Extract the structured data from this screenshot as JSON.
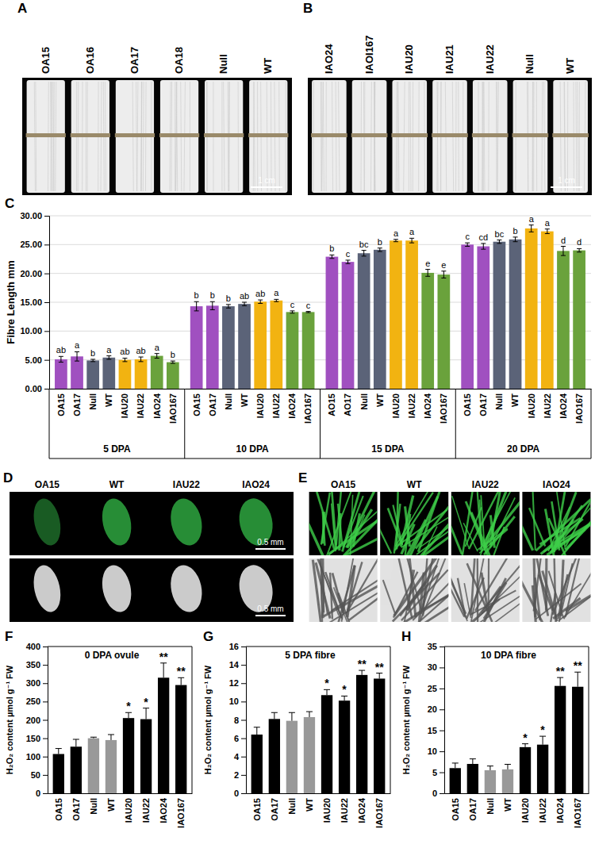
{
  "photo_panels": [
    {
      "label": "A",
      "samples": [
        "OA15",
        "OA16",
        "OA17",
        "OA18",
        "Null",
        "WT"
      ],
      "scale_bar": "1 cm"
    },
    {
      "label": "B",
      "samples": [
        "IAO24",
        "IAOI167",
        "IAU20",
        "IAU21",
        "IAU22",
        "Null",
        "WT"
      ],
      "scale_bar": "1 cm"
    },
    {
      "label": "D",
      "samples": [
        "OA15",
        "WT",
        "IAU22",
        "IAO24"
      ],
      "scale_bars": [
        "0.5 mm",
        "0.5 mm"
      ]
    },
    {
      "label": "E",
      "samples": [
        "OA15",
        "WT",
        "IAU22",
        "IAO24"
      ]
    }
  ],
  "chart_data": [
    {
      "panel_label": "C",
      "type": "bar",
      "ylabel": "Fibre Length mm",
      "grid": true,
      "ylim": [
        0,
        30
      ],
      "yticks": [
        {
          "value": 0,
          "label": "0.00"
        },
        {
          "value": 5,
          "label": "5.00"
        },
        {
          "value": 10,
          "label": "10.00"
        },
        {
          "value": 15,
          "label": "15.00"
        },
        {
          "value": 20,
          "label": "20.00"
        },
        {
          "value": 25,
          "label": "25.00"
        },
        {
          "value": 30,
          "label": "30.00"
        }
      ],
      "groups": [
        {
          "name": "5 DPA",
          "categories": [
            "OA15",
            "OA17",
            "Null",
            "WT",
            "IAU20",
            "IAU22",
            "IAO24",
            "IAO167"
          ],
          "values": [
            5.1,
            5.6,
            4.9,
            5.4,
            5.0,
            5.1,
            5.7,
            4.6
          ],
          "errors": [
            0.5,
            0.8,
            0.2,
            0.3,
            0.3,
            0.4,
            0.4,
            0.2
          ],
          "letters": [
            "ab",
            "a",
            "b",
            "a",
            "ab",
            "ab",
            "a",
            "b"
          ],
          "colors": [
            "#a050c0",
            "#a050c0",
            "#5b6378",
            "#5b6378",
            "#f2b311",
            "#f2b311",
            "#6aa23c",
            "#6aa23c"
          ]
        },
        {
          "name": "10 DPA",
          "categories": [
            "OA15",
            "OA17",
            "Null",
            "WT",
            "IAU20",
            "IAU22",
            "IAO24",
            "IAO167"
          ],
          "values": [
            14.3,
            14.4,
            14.3,
            14.7,
            15.1,
            15.3,
            13.3,
            13.3
          ],
          "errors": [
            0.8,
            0.7,
            0.3,
            0.3,
            0.3,
            0.2,
            0.2,
            0.1
          ],
          "letters": [
            "b",
            "b",
            "b",
            "ab",
            "ab",
            "a",
            "c",
            "c"
          ],
          "colors": [
            "#a050c0",
            "#a050c0",
            "#5b6378",
            "#5b6378",
            "#f2b311",
            "#f2b311",
            "#6aa23c",
            "#6aa23c"
          ]
        },
        {
          "name": "15 DPA",
          "categories": [
            "AO15",
            "AO17",
            "Null",
            "WT",
            "IAU20",
            "IAU22",
            "IAO24",
            "IAO167"
          ],
          "values": [
            22.9,
            22.0,
            23.5,
            24.1,
            25.7,
            25.7,
            20.1,
            19.8
          ],
          "errors": [
            0.3,
            0.3,
            0.5,
            0.3,
            0.2,
            0.4,
            0.6,
            0.6
          ],
          "letters": [
            "b",
            "c",
            "bc",
            "b",
            "a",
            "a",
            "e",
            "e"
          ],
          "colors": [
            "#a050c0",
            "#a050c0",
            "#5b6378",
            "#5b6378",
            "#f2b311",
            "#f2b311",
            "#6aa23c",
            "#6aa23c"
          ]
        },
        {
          "name": "20 DPA",
          "categories": [
            "OA15",
            "OA17",
            "Null",
            "WT",
            "IAU20",
            "IAU22",
            "IAO24",
            "IAO167"
          ],
          "values": [
            25.0,
            24.7,
            25.5,
            25.9,
            27.8,
            27.3,
            23.9,
            24.0
          ],
          "errors": [
            0.3,
            0.5,
            0.3,
            0.4,
            0.6,
            0.4,
            0.8,
            0.3
          ],
          "letters": [
            "c",
            "cd",
            "bc",
            "b",
            "a",
            "a",
            "d",
            "d"
          ],
          "colors": [
            "#a050c0",
            "#a050c0",
            "#5b6378",
            "#5b6378",
            "#f2b311",
            "#f2b311",
            "#6aa23c",
            "#6aa23c"
          ]
        }
      ]
    },
    {
      "panel_label": "F",
      "type": "bar",
      "title": "0 DPA ovule",
      "ylabel": "H₂O₂ content µmol g⁻¹ FW",
      "grid": false,
      "categories": [
        "OA15",
        "OA17",
        "Null",
        "WT",
        "IAU20",
        "IAU22",
        "IAO24",
        "IAO167"
      ],
      "values": [
        107,
        127,
        150,
        145,
        205,
        202,
        315,
        295
      ],
      "errors": [
        15,
        20,
        3,
        15,
        15,
        30,
        40,
        20
      ],
      "significance": [
        null,
        null,
        null,
        null,
        "*",
        "*",
        "**",
        "**"
      ],
      "colors": [
        "#000000",
        "#000000",
        "#999999",
        "#999999",
        "#000000",
        "#000000",
        "#000000",
        "#000000"
      ],
      "ylim": [
        0,
        400
      ],
      "yticks": [
        0,
        50,
        100,
        150,
        200,
        250,
        300,
        350,
        400
      ]
    },
    {
      "panel_label": "G",
      "type": "bar",
      "title": "5 DPA fibre",
      "ylabel": "H₂O₂ content µmol g⁻¹ FW",
      "grid": false,
      "categories": [
        "OA15",
        "OA17",
        "Null",
        "WT",
        "IAU20",
        "IAU22",
        "IAO24",
        "IAO167"
      ],
      "values": [
        6.4,
        8.1,
        7.9,
        8.3,
        10.7,
        10.1,
        12.9,
        12.5
      ],
      "errors": [
        0.8,
        0.7,
        0.9,
        0.6,
        0.6,
        0.5,
        0.5,
        0.6
      ],
      "significance": [
        null,
        null,
        null,
        null,
        "*",
        "*",
        "**",
        "**"
      ],
      "colors": [
        "#000000",
        "#000000",
        "#999999",
        "#999999",
        "#000000",
        "#000000",
        "#000000",
        "#000000"
      ],
      "ylim": [
        0,
        16
      ],
      "yticks": [
        0,
        2,
        4,
        6,
        8,
        10,
        12,
        14,
        16
      ]
    },
    {
      "panel_label": "H",
      "type": "bar",
      "title": "10 DPA fibre",
      "ylabel": "H₂O₂ content µmol g⁻¹ FW",
      "grid": false,
      "categories": [
        "OA15",
        "OA17",
        "Null",
        "WT",
        "IAU20",
        "IAU22",
        "IAO24",
        "IAO167"
      ],
      "values": [
        6.0,
        7.0,
        5.5,
        5.7,
        11.0,
        11.6,
        25.6,
        25.4
      ],
      "errors": [
        1.2,
        1.2,
        1.0,
        1.2,
        0.8,
        2.0,
        2.0,
        3.5
      ],
      "significance": [
        null,
        null,
        null,
        null,
        "*",
        "*",
        "**",
        "**"
      ],
      "colors": [
        "#000000",
        "#000000",
        "#999999",
        "#999999",
        "#000000",
        "#000000",
        "#000000",
        "#000000"
      ],
      "ylim": [
        0,
        35
      ],
      "yticks": [
        0,
        5,
        10,
        15,
        20,
        25,
        30,
        35
      ]
    }
  ]
}
